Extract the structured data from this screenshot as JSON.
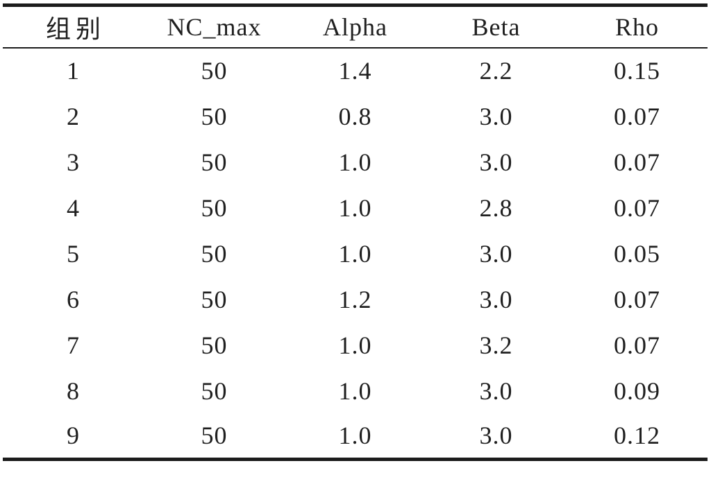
{
  "table": {
    "columns": [
      "组别",
      "NC_max",
      "Alpha",
      "Beta",
      "Rho"
    ],
    "rows": [
      [
        "1",
        "50",
        "1.4",
        "2.2",
        "0.15"
      ],
      [
        "2",
        "50",
        "0.8",
        "3.0",
        "0.07"
      ],
      [
        "3",
        "50",
        "1.0",
        "3.0",
        "0.07"
      ],
      [
        "4",
        "50",
        "1.0",
        "2.8",
        "0.07"
      ],
      [
        "5",
        "50",
        "1.0",
        "3.0",
        "0.05"
      ],
      [
        "6",
        "50",
        "1.2",
        "3.0",
        "0.07"
      ],
      [
        "7",
        "50",
        "1.0",
        "3.2",
        "0.07"
      ],
      [
        "8",
        "50",
        "1.0",
        "3.0",
        "0.09"
      ],
      [
        "9",
        "50",
        "1.0",
        "3.0",
        "0.12"
      ]
    ]
  },
  "colors": {
    "text": "#1f1f1f",
    "rule": "#1c1c1c",
    "background": "#ffffff"
  }
}
